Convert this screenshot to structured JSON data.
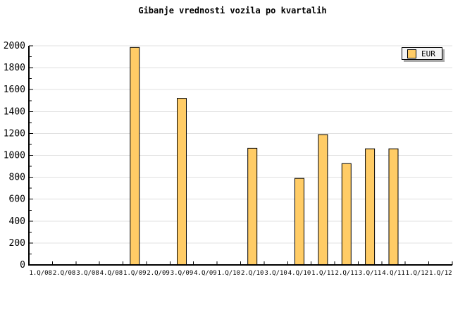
{
  "style": {
    "background": "#FFFFFF",
    "bar_fill": "#FFCC66",
    "bar_stroke": "#000000",
    "gridline": "#E0E0E0",
    "axis": "#000000",
    "text": "#000000",
    "legend_bg": "#F4F4F4",
    "legend_shadow": "#AAAAAA"
  },
  "chart_data": {
    "type": "bar",
    "title": "Gibanje vrednosti vozila po kvartalih",
    "xlabel": "",
    "ylabel": "",
    "categories": [
      "1.Q/08",
      "2.Q/08",
      "3.Q/08",
      "4.Q/08",
      "1.Q/09",
      "2.Q/09",
      "3.Q/09",
      "4.Q/09",
      "1.Q/10",
      "2.Q/10",
      "3.Q/10",
      "4.Q/10",
      "1.Q/11",
      "2.Q/11",
      "3.Q/11",
      "4.Q/11",
      "1.Q/12",
      "1.Q/12"
    ],
    "series": [
      {
        "name": "EUR",
        "values": [
          0,
          0,
          0,
          0,
          1985,
          0,
          1520,
          0,
          0,
          1065,
          0,
          790,
          1190,
          925,
          1060,
          1060,
          0,
          0
        ]
      }
    ],
    "ylim": [
      0,
      2000
    ],
    "ytick_major_step": 200,
    "ytick_minor_step": 100,
    "ytick_labels": [
      "0",
      "200",
      "400",
      "600",
      "800",
      "1000",
      "1200",
      "1400",
      "1600",
      "1800",
      "2000"
    ],
    "grid": true,
    "legend": {
      "label": "EUR",
      "position": "top-right"
    }
  }
}
